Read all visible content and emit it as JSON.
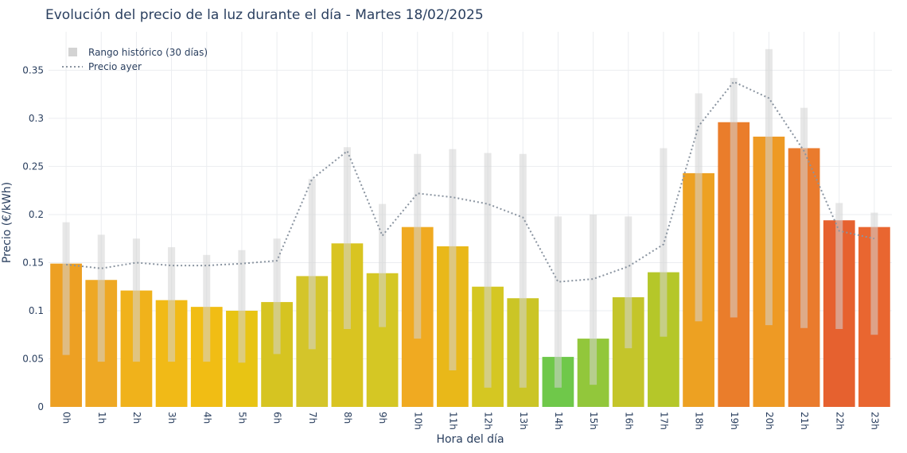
{
  "chart_data": {
    "type": "bar",
    "title": "Evolución del precio de la luz durante el día - Martes 18/02/2025",
    "xlabel": "Hora del día",
    "ylabel": "Precio (€/kWh)",
    "ylim": [
      0,
      0.39
    ],
    "yticks": [
      0,
      0.05,
      0.1,
      0.15,
      0.2,
      0.25,
      0.3,
      0.35
    ],
    "ytick_labels": [
      "0",
      "0.05",
      "0.1",
      "0.15",
      "0.2",
      "0.25",
      "0.3",
      "0.35"
    ],
    "categories": [
      "0h",
      "1h",
      "2h",
      "3h",
      "4h",
      "5h",
      "6h",
      "7h",
      "8h",
      "9h",
      "10h",
      "11h",
      "12h",
      "13h",
      "14h",
      "15h",
      "16h",
      "17h",
      "18h",
      "19h",
      "20h",
      "21h",
      "22h",
      "23h"
    ],
    "grid": true,
    "legend_position": "top-left",
    "series": [
      {
        "name": "Precio",
        "type": "bar",
        "values": [
          0.149,
          0.132,
          0.121,
          0.111,
          0.104,
          0.1,
          0.109,
          0.136,
          0.17,
          0.139,
          0.187,
          0.167,
          0.125,
          0.113,
          0.052,
          0.071,
          0.114,
          0.14,
          0.243,
          0.296,
          0.281,
          0.269,
          0.194,
          0.187
        ],
        "colors": [
          "#eda023",
          "#eea824",
          "#f0b21b",
          "#f1ba17",
          "#f1bd14",
          "#e8c414",
          "#d6c421",
          "#d4c52a",
          "#d9c421",
          "#d5c724",
          "#f0aa21",
          "#e9b819",
          "#d5c722",
          "#cbc526",
          "#6fc84a",
          "#92c73b",
          "#c4c52a",
          "#b5c729",
          "#eda122",
          "#ea7d2b",
          "#ee9a24",
          "#ea7b2d",
          "#e6612f",
          "#e96630"
        ]
      },
      {
        "name": "Rango histórico (30 días)",
        "type": "range",
        "color": "#d3d3d3",
        "low": [
          0.054,
          0.047,
          0.047,
          0.047,
          0.047,
          0.046,
          0.055,
          0.06,
          0.081,
          0.083,
          0.071,
          0.038,
          0.02,
          0.02,
          0.02,
          0.023,
          0.061,
          0.073,
          0.089,
          0.093,
          0.085,
          0.082,
          0.081,
          0.075
        ],
        "high": [
          0.192,
          0.179,
          0.175,
          0.166,
          0.158,
          0.163,
          0.175,
          0.237,
          0.27,
          0.211,
          0.263,
          0.268,
          0.264,
          0.263,
          0.198,
          0.2,
          0.198,
          0.269,
          0.326,
          0.342,
          0.372,
          0.311,
          0.212,
          0.202
        ]
      },
      {
        "name": "Precio ayer",
        "type": "line",
        "color": "#8a94a0",
        "values": [
          0.148,
          0.144,
          0.15,
          0.147,
          0.147,
          0.149,
          0.152,
          0.237,
          0.266,
          0.178,
          0.222,
          0.218,
          0.211,
          0.197,
          0.13,
          0.133,
          0.146,
          0.169,
          0.292,
          0.338,
          0.321,
          0.266,
          0.183,
          0.175
        ]
      }
    ]
  }
}
